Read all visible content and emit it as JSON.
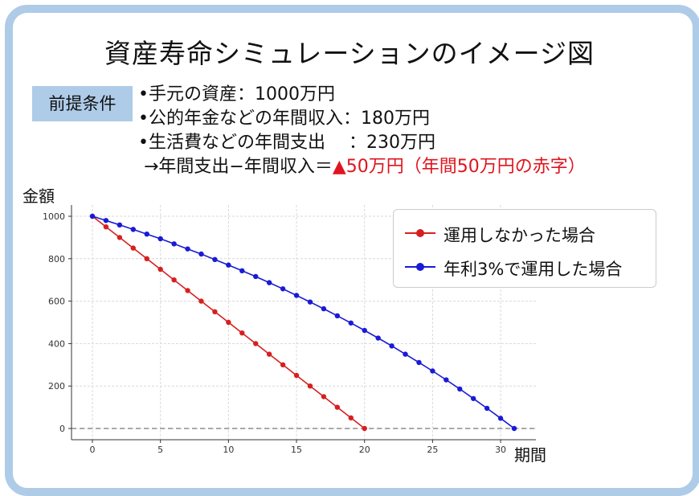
{
  "title": "資産寿命シミュレーションのイメージ図",
  "conditions": {
    "badge": "前提条件",
    "line1": "•手元の資産：1000万円",
    "line2": "•公的年金などの年間収入：180万円",
    "line3": "•生活費などの年間支出　 ：230万円",
    "line4_prefix": " →年間支出−年間収入＝",
    "line4_red": "▲50万円（年間50万円の赤字）"
  },
  "colors": {
    "frame": "#aecbe8",
    "red": "#e0141e",
    "series_red": "#d62020",
    "series_blue": "#1a1ad6"
  },
  "chart_data": {
    "type": "line",
    "ylabel": "金額",
    "xlabel": "期間",
    "xlim": [
      0,
      31
    ],
    "ylim": [
      0,
      1000
    ],
    "xticks": [
      0,
      5,
      10,
      15,
      20,
      25,
      30
    ],
    "yticks": [
      0,
      200,
      400,
      600,
      800,
      1000
    ],
    "grid": true,
    "legend_position": "top-right",
    "series": [
      {
        "name": "運用しなかった場合",
        "color": "#d62020",
        "x": [
          0,
          1,
          2,
          3,
          4,
          5,
          6,
          7,
          8,
          9,
          10,
          11,
          12,
          13,
          14,
          15,
          16,
          17,
          18,
          19,
          20
        ],
        "values": [
          1000,
          950,
          900,
          850,
          800,
          750,
          700,
          650,
          600,
          550,
          500,
          450,
          400,
          350,
          300,
          250,
          200,
          150,
          100,
          50,
          0
        ]
      },
      {
        "name": "年利3%で運用した場合",
        "color": "#1a1ad6",
        "x": [
          0,
          1,
          2,
          3,
          4,
          5,
          6,
          7,
          8,
          9,
          10,
          11,
          12,
          13,
          14,
          15,
          16,
          17,
          18,
          19,
          20,
          21,
          22,
          23,
          24,
          25,
          26,
          27,
          28,
          29,
          30,
          31
        ],
        "values": [
          1000,
          980,
          959,
          938,
          916,
          894,
          870,
          846,
          822,
          796,
          770,
          743,
          716,
          687,
          658,
          627,
          596,
          564,
          531,
          497,
          462,
          426,
          389,
          350,
          311,
          271,
          229,
          186,
          141,
          95,
          48,
          0
        ]
      }
    ]
  }
}
